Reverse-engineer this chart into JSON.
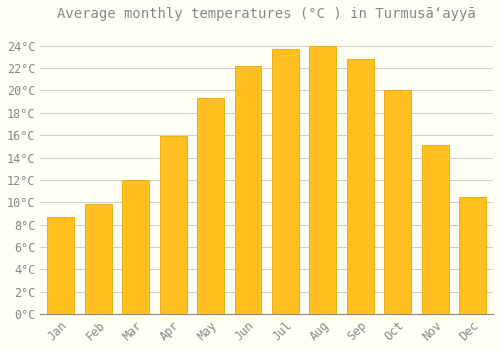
{
  "title": "Average monthly temperatures (°C ) in Turmusāʻayyā",
  "months": [
    "Jan",
    "Feb",
    "Mar",
    "Apr",
    "May",
    "Jun",
    "Jul",
    "Aug",
    "Sep",
    "Oct",
    "Nov",
    "Dec"
  ],
  "values": [
    8.7,
    9.8,
    12.0,
    15.9,
    19.3,
    22.2,
    23.7,
    24.0,
    22.8,
    20.0,
    15.1,
    10.5
  ],
  "bar_color": "#FFC020",
  "bar_edge_color": "#E8A800",
  "background_color": "#FFFFF5",
  "grid_color": "#CCCCCC",
  "text_color": "#888888",
  "ylim": [
    0,
    25.5
  ],
  "yticks": [
    0,
    2,
    4,
    6,
    8,
    10,
    12,
    14,
    16,
    18,
    20,
    22,
    24
  ],
  "title_fontsize": 10,
  "tick_fontsize": 8.5
}
